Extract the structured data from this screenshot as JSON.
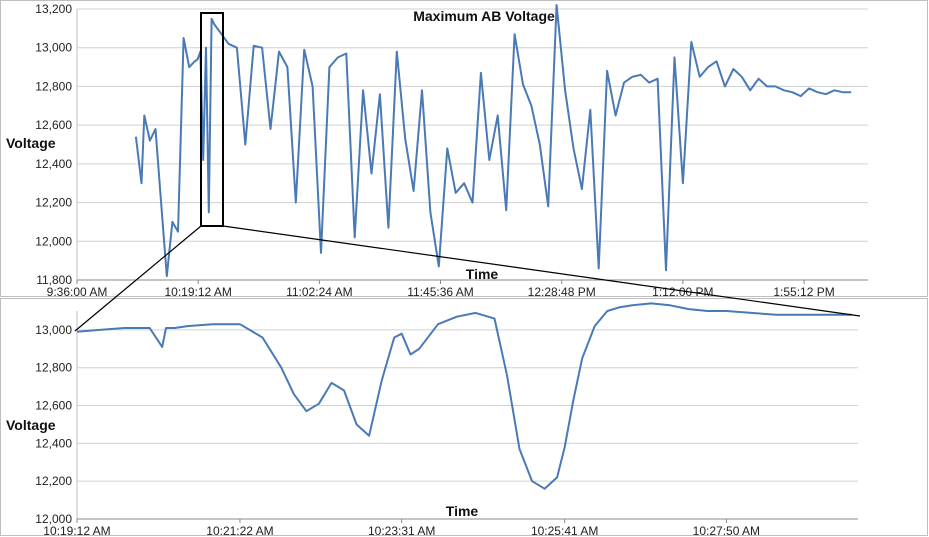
{
  "colors": {
    "series": "#4a7ab5",
    "grid": "#d0d0d0",
    "frame": "#bfbfbf",
    "zoom_box": "#000000"
  },
  "chart_data": [
    {
      "type": "line",
      "title": "Maximum AB Voltage",
      "xlabel": "Time",
      "ylabel": "Voltage",
      "ylim": [
        11800,
        13200
      ],
      "yticks": [
        "11,800",
        "12,000",
        "12,200",
        "12,400",
        "12,600",
        "12,800",
        "13,000",
        "13,200"
      ],
      "xticks": [
        "9:36:00 AM",
        "10:19:12 AM",
        "11:02:24 AM",
        "11:45:36 AM",
        "12:28:48 PM",
        "1:12:00 PM",
        "1:55:12 PM"
      ],
      "grid": true,
      "series": [
        {
          "x": [
            "9:57:00",
            "9:59:00",
            "10:00:00",
            "10:02:00",
            "10:04:00",
            "10:06:00",
            "10:08:00",
            "10:10:00",
            "10:12:00",
            "10:14:00",
            "10:16:00",
            "10:18:00",
            "10:19:00",
            "10:20:00",
            "10:21:00",
            "10:22:00",
            "10:23:00",
            "10:24:00",
            "10:25:00",
            "10:27:00",
            "10:30:00",
            "10:33:00",
            "10:36:00",
            "10:39:00",
            "10:42:00",
            "10:45:00",
            "10:48:00",
            "10:51:00",
            "10:54:00",
            "10:57:00",
            "11:00:00",
            "11:03:00",
            "11:06:00",
            "11:09:00",
            "11:12:00",
            "11:15:00",
            "11:18:00",
            "11:21:00",
            "11:24:00",
            "11:27:00",
            "11:30:00",
            "11:33:00",
            "11:36:00",
            "11:39:00",
            "11:42:00",
            "11:45:00",
            "11:48:00",
            "11:51:00",
            "11:54:00",
            "11:57:00",
            "12:00:00",
            "12:03:00",
            "12:06:00",
            "12:09:00",
            "12:12:00",
            "12:15:00",
            "12:18:00",
            "12:21:00",
            "12:24:00",
            "12:27:00",
            "12:30:00",
            "12:33:00",
            "12:36:00",
            "12:39:00",
            "12:42:00",
            "12:45:00",
            "12:48:00",
            "12:51:00",
            "12:54:00",
            "12:57:00",
            "1:00:00",
            "1:03:00",
            "1:06:00",
            "1:09:00",
            "1:12:00",
            "1:15:00",
            "1:18:00",
            "1:21:00",
            "1:24:00",
            "1:27:00",
            "1:30:00",
            "1:33:00",
            "1:36:00",
            "1:39:00",
            "1:42:00",
            "1:45:00",
            "1:48:00",
            "1:51:00",
            "1:54:00",
            "1:57:00",
            "2:00:00",
            "2:03:00",
            "2:06:00",
            "2:09:00",
            "2:12:00"
          ],
          "y": [
            12540,
            12300,
            12650,
            12520,
            12580,
            12200,
            11820,
            12100,
            12050,
            13050,
            12900,
            12930,
            12940,
            12980,
            12420,
            13000,
            12150,
            13150,
            13120,
            13080,
            13020,
            13000,
            12500,
            13010,
            13000,
            12580,
            12980,
            12900,
            12200,
            12990,
            12800,
            11940,
            12900,
            12950,
            12970,
            12020,
            12780,
            12350,
            12760,
            12070,
            12980,
            12530,
            12260,
            12780,
            12150,
            11870,
            12480,
            12250,
            12300,
            12200,
            12870,
            12420,
            12650,
            12160,
            13070,
            12810,
            12700,
            12500,
            12180,
            13220,
            12780,
            12480,
            12270,
            12680,
            11860,
            12880,
            12650,
            12820,
            12850,
            12860,
            12820,
            12840,
            11850,
            12950,
            12300,
            13030,
            12850,
            12900,
            12930,
            12800,
            12890,
            12850,
            12780,
            12840,
            12800,
            12800,
            12780,
            12770,
            12750,
            12790,
            12770,
            12760,
            12780,
            12770,
            12770
          ]
        }
      ]
    },
    {
      "type": "line",
      "title": "",
      "xlabel": "Time",
      "ylabel": "Voltage",
      "ylim": [
        12000,
        13100
      ],
      "yticks": [
        "12,000",
        "12,200",
        "12,400",
        "12,600",
        "12,800",
        "13,000"
      ],
      "xticks": [
        "10:19:12 AM",
        "10:21:22 AM",
        "10:23:31 AM",
        "10:25:41 AM",
        "10:27:50 AM"
      ],
      "grid": true,
      "series": [
        {
          "x": [
            "10:19:12",
            "10:19:30",
            "10:19:50",
            "10:20:10",
            "10:20:20",
            "10:20:23",
            "10:20:30",
            "10:20:40",
            "10:21:00",
            "10:21:22",
            "10:21:40",
            "10:21:55",
            "10:22:05",
            "10:22:15",
            "10:22:25",
            "10:22:35",
            "10:22:45",
            "10:22:55",
            "10:23:05",
            "10:23:15",
            "10:23:25",
            "10:23:31",
            "10:23:38",
            "10:23:45",
            "10:24:00",
            "10:24:15",
            "10:24:30",
            "10:24:45",
            "10:24:55",
            "10:25:05",
            "10:25:15",
            "10:25:25",
            "10:25:35",
            "10:25:41",
            "10:25:48",
            "10:25:55",
            "10:26:05",
            "10:26:15",
            "10:26:25",
            "10:26:35",
            "10:26:50",
            "10:27:05",
            "10:27:20",
            "10:27:35",
            "10:27:50",
            "10:28:10",
            "10:28:30",
            "10:28:50",
            "10:29:10",
            "10:29:30"
          ],
          "y": [
            12990,
            13000,
            13010,
            13010,
            12910,
            13010,
            13010,
            13020,
            13030,
            13030,
            12960,
            12800,
            12660,
            12570,
            12610,
            12720,
            12680,
            12500,
            12440,
            12730,
            12960,
            12980,
            12870,
            12900,
            13030,
            13070,
            13090,
            13060,
            12760,
            12370,
            12200,
            12160,
            12220,
            12380,
            12630,
            12850,
            13020,
            13100,
            13120,
            13130,
            13140,
            13130,
            13110,
            13100,
            13100,
            13090,
            13080,
            13080,
            13080,
            13080
          ]
        }
      ]
    }
  ]
}
